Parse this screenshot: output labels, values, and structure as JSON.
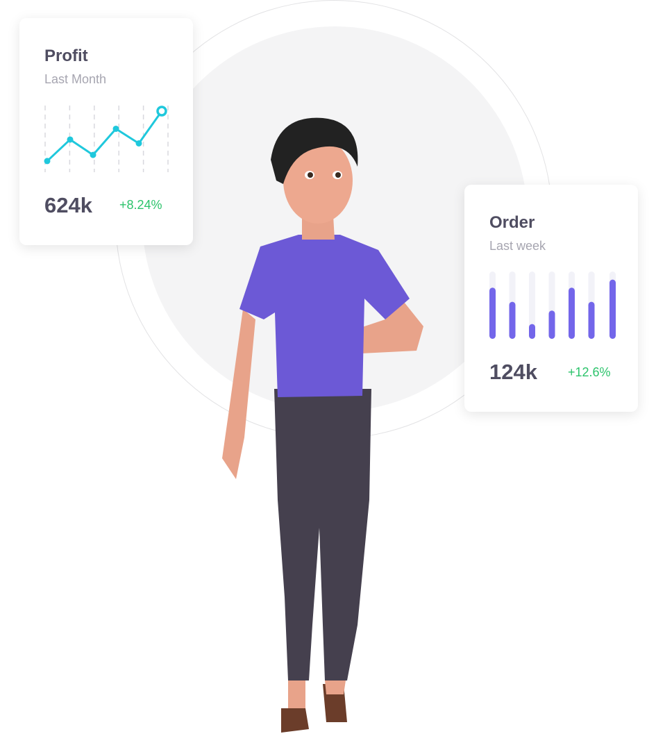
{
  "profit_card": {
    "title": "Profit",
    "subtitle": "Last Month",
    "value": "624k",
    "change": "+8.24%",
    "chart_data": {
      "type": "line",
      "values": [
        10,
        38,
        18,
        52,
        33,
        75
      ],
      "color": "#1fc8dc"
    }
  },
  "order_card": {
    "title": "Order",
    "subtitle": "Last week",
    "value": "124k",
    "change": "+12.6%",
    "chart_data": {
      "type": "bar",
      "values": [
        0.76,
        0.55,
        0.22,
        0.42,
        0.76,
        0.55,
        0.88
      ],
      "color": "#7366ea",
      "track_color": "#f2f2f8"
    }
  },
  "colors": {
    "positive": "#2cc36b",
    "shirt": "#6c59d6",
    "pants": "#45404e"
  }
}
